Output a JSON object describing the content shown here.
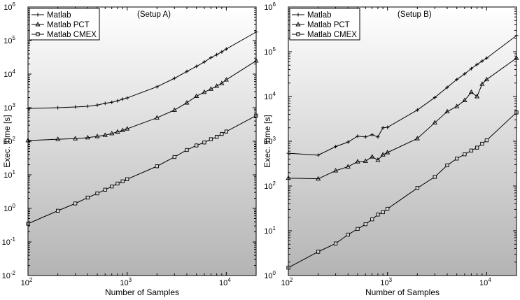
{
  "chart_data": [
    {
      "type": "line",
      "annotation": "(Setup A)",
      "xlabel": "Number of Samples",
      "ylabel": "Exec. Time [s]",
      "xscale": "log",
      "yscale": "log",
      "xlim": [
        100,
        20000
      ],
      "ylim": [
        0.01,
        1000000
      ],
      "xticks": [
        {
          "base": "10",
          "exp": "2"
        },
        {
          "base": "10",
          "exp": "3"
        },
        {
          "base": "10",
          "exp": "4"
        }
      ],
      "yticks": [
        {
          "base": "10",
          "exp": "-2"
        },
        {
          "base": "10",
          "exp": "-1"
        },
        {
          "base": "10",
          "exp": "0"
        },
        {
          "base": "10",
          "exp": "1"
        },
        {
          "base": "10",
          "exp": "2"
        },
        {
          "base": "10",
          "exp": "3"
        },
        {
          "base": "10",
          "exp": "4"
        },
        {
          "base": "10",
          "exp": "5"
        },
        {
          "base": "10",
          "exp": "6"
        }
      ],
      "legend_position": "top-left",
      "series": [
        {
          "name": "Matlab",
          "marker": "plus",
          "x": [
            100,
            200,
            300,
            400,
            500,
            600,
            700,
            800,
            900,
            1000,
            2000,
            3000,
            4000,
            5000,
            6000,
            7000,
            8000,
            9000,
            10000,
            20000
          ],
          "y": [
            950,
            1000,
            1050,
            1100,
            1200,
            1350,
            1450,
            1600,
            1800,
            1950,
            4200,
            7500,
            12000,
            17000,
            23000,
            31000,
            38000,
            46000,
            56000,
            180000
          ]
        },
        {
          "name": "Matlab PCT",
          "marker": "triangle",
          "x": [
            100,
            200,
            300,
            400,
            500,
            600,
            700,
            800,
            900,
            1000,
            2000,
            3000,
            4000,
            5000,
            6000,
            7000,
            8000,
            9000,
            10000,
            20000
          ],
          "y": [
            105,
            115,
            120,
            128,
            140,
            152,
            170,
            190,
            210,
            235,
            500,
            850,
            1400,
            2200,
            2900,
            3600,
            4400,
            5300,
            6800,
            25000
          ]
        },
        {
          "name": "Matlab CMEX",
          "marker": "square",
          "x": [
            100,
            200,
            300,
            400,
            500,
            600,
            700,
            800,
            900,
            1000,
            2000,
            3000,
            4000,
            5000,
            6000,
            7000,
            8000,
            9000,
            10000,
            20000
          ],
          "y": [
            0.35,
            0.85,
            1.4,
            2.1,
            2.8,
            3.6,
            4.5,
            5.5,
            6.4,
            7.4,
            18,
            34,
            55,
            75,
            92,
            115,
            135,
            165,
            195,
            580
          ]
        }
      ]
    },
    {
      "type": "line",
      "annotation": "(Setup B)",
      "xlabel": "Number of Samples",
      "ylabel": "Exec. Time [s]",
      "xscale": "log",
      "yscale": "log",
      "xlim": [
        100,
        20000
      ],
      "ylim": [
        1,
        1000000
      ],
      "xticks": [
        {
          "base": "10",
          "exp": "2"
        },
        {
          "base": "10",
          "exp": "3"
        },
        {
          "base": "10",
          "exp": "4"
        }
      ],
      "yticks": [
        {
          "base": "10",
          "exp": "0"
        },
        {
          "base": "10",
          "exp": "1"
        },
        {
          "base": "10",
          "exp": "2"
        },
        {
          "base": "10",
          "exp": "3"
        },
        {
          "base": "10",
          "exp": "4"
        },
        {
          "base": "10",
          "exp": "5"
        },
        {
          "base": "10",
          "exp": "6"
        }
      ],
      "legend_position": "top-left",
      "series": [
        {
          "name": "Matlab",
          "marker": "plus",
          "x": [
            100,
            200,
            300,
            400,
            500,
            600,
            700,
            800,
            900,
            1000,
            2000,
            3000,
            4000,
            5000,
            6000,
            7000,
            8000,
            9000,
            10000,
            20000
          ],
          "y": [
            540,
            490,
            760,
            960,
            1300,
            1250,
            1400,
            1250,
            2000,
            2050,
            5000,
            9500,
            16000,
            24000,
            32000,
            42000,
            52000,
            62000,
            72000,
            230000
          ]
        },
        {
          "name": "Matlab PCT",
          "marker": "triangle",
          "x": [
            100,
            200,
            300,
            400,
            500,
            600,
            700,
            800,
            900,
            1000,
            2000,
            3000,
            4000,
            5000,
            6000,
            7000,
            8000,
            9000,
            10000,
            20000
          ],
          "y": [
            150,
            145,
            220,
            270,
            350,
            360,
            450,
            380,
            500,
            560,
            1150,
            2600,
            4600,
            6000,
            8200,
            12500,
            10000,
            19000,
            24000,
            72000
          ]
        },
        {
          "name": "Matlab CMEX",
          "marker": "square",
          "x": [
            100,
            200,
            300,
            400,
            500,
            600,
            700,
            800,
            900,
            1000,
            2000,
            3000,
            4000,
            5000,
            6000,
            7000,
            8000,
            9000,
            10000,
            20000
          ],
          "y": [
            1.5,
            3.4,
            5.2,
            8.2,
            11,
            14,
            18,
            23,
            26,
            31,
            90,
            160,
            290,
            410,
            510,
            620,
            720,
            880,
            1050,
            4400
          ]
        }
      ]
    }
  ]
}
